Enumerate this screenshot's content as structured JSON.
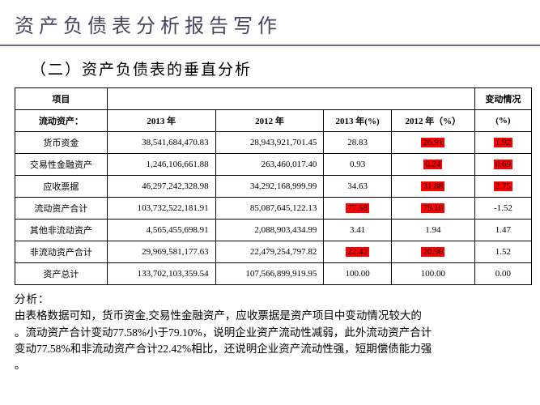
{
  "title": "资产负债表分析报告写作",
  "subtitle": "（二）资产负债表的垂直分析",
  "table": {
    "headers": {
      "col1": "项目",
      "change": "变动情况",
      "row2_label": "流动资产：",
      "y2013": "2013 年",
      "y2012": "2012 年",
      "y2013pct": "2013 年(%)",
      "y2012pct": "2012 年（%）",
      "changepct": "(%)"
    },
    "rows": [
      {
        "label": "货币资金",
        "v2013": "38,541,684,470.83",
        "v2012": "28,943,921,701.45",
        "p2013": "28.83",
        "p2012": "26.91",
        "chg": "1.92",
        "hl_p2012": true,
        "hl_chg": true
      },
      {
        "label": "交易性金融资产",
        "v2013": "1,246,106,661.88",
        "v2012": "263,460,017.40",
        "p2013": "0.93",
        "p2012": "0.24",
        "chg": "0.69",
        "hl_p2012": true,
        "hl_chg": true
      },
      {
        "label": "应收票据",
        "v2013": "46,297,242,328.98",
        "v2012": "34,292,168,999.99",
        "p2013": "34.63",
        "p2012": "31.88",
        "chg": "2.75",
        "hl_p2012": true,
        "hl_chg": true
      },
      {
        "label": "流动资产合计",
        "v2013": "103,732,522,181.91",
        "v2012": "85,087,645,122.13",
        "p2013": "77.58",
        "p2012": "79.10",
        "chg": "-1.52",
        "hl_p2013": true,
        "hl_p2012": true
      },
      {
        "label": "其他非流动资产",
        "v2013": "4,565,455,698.91",
        "v2012": "2,088,903,434.99",
        "p2013": "3.41",
        "p2012": "1.94",
        "chg": "1.47"
      },
      {
        "label": "非流动资产合计",
        "v2013": "29,969,581,177.63",
        "v2012": "22,479,254,797.82",
        "p2013": "22.42",
        "p2012": "20.90",
        "chg": "1.52",
        "hl_p2013": true,
        "hl_p2012": true
      },
      {
        "label": "资产总计",
        "v2013": "133,702,103,359.54",
        "v2012": "107,566,899,919.95",
        "p2013": "100.00",
        "p2012": "100.00",
        "chg": "0.00"
      }
    ]
  },
  "analysis": {
    "label": "分析：",
    "line1": "由表格数据可知，货币资金,交易性金融资产，应收票据是资产项目中变动情况较大的",
    "line2": "。流动资产合计变动77.58%小于79.10%，说明企业资产流动性减弱，此外流动资产合计",
    "line3": "变动77.58%和非流动资产合计22.42%相比，还说明企业资产流动性强，短期偿债能力强",
    "line4": "。"
  }
}
